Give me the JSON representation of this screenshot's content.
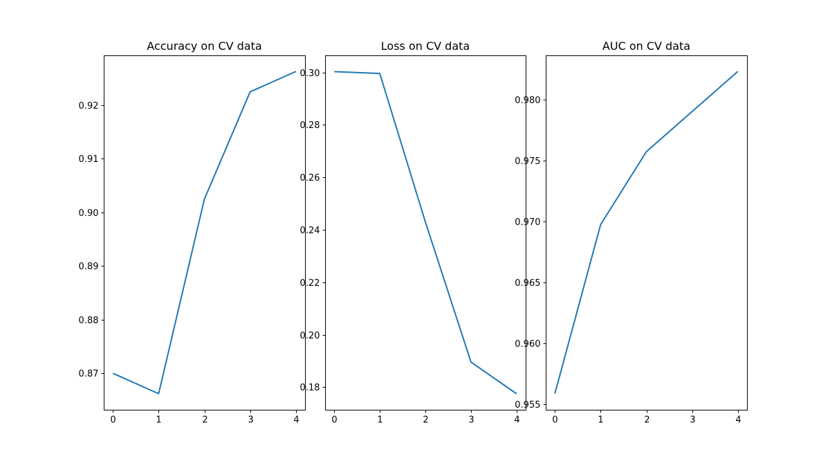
{
  "colors": {
    "series": "#1f77b4"
  },
  "chart_data": [
    {
      "type": "line",
      "title": "Accuracy on CV data",
      "x": [
        0,
        1,
        2,
        3,
        4
      ],
      "xticks": [
        0,
        1,
        2,
        3,
        4
      ],
      "xlim": [
        -0.2,
        4.2
      ],
      "series": [
        {
          "values": [
            0.87,
            0.8662,
            0.9025,
            0.9225,
            0.9263
          ]
        }
      ],
      "yticks": [
        0.87,
        0.88,
        0.89,
        0.9,
        0.91,
        0.92
      ],
      "ytick_labels": [
        "0.87",
        "0.88",
        "0.89",
        "0.90",
        "0.91",
        "0.92"
      ],
      "ylim": [
        0.8632,
        0.9293
      ],
      "grid": false,
      "legend": false
    },
    {
      "type": "line",
      "title": "Loss on CV data",
      "x": [
        0,
        1,
        2,
        3,
        4
      ],
      "xticks": [
        0,
        1,
        2,
        3,
        4
      ],
      "xlim": [
        -0.2,
        4.2
      ],
      "series": [
        {
          "values": [
            0.3003,
            0.2996,
            0.243,
            0.1896,
            0.1775
          ]
        }
      ],
      "yticks": [
        0.18,
        0.2,
        0.22,
        0.24,
        0.26,
        0.28,
        0.3
      ],
      "ytick_labels": [
        "0.18",
        "0.20",
        "0.22",
        "0.24",
        "0.26",
        "0.28",
        "0.30"
      ],
      "ylim": [
        0.1714,
        0.3065
      ],
      "grid": false,
      "legend": false
    },
    {
      "type": "line",
      "title": "AUC on CV data",
      "x": [
        0,
        1,
        2,
        3,
        4
      ],
      "xticks": [
        0,
        1,
        2,
        3,
        4
      ],
      "xlim": [
        -0.2,
        4.2
      ],
      "series": [
        {
          "values": [
            0.95585,
            0.96975,
            0.97575,
            0.97905,
            0.98235
          ]
        }
      ],
      "yticks": [
        0.955,
        0.96,
        0.965,
        0.97,
        0.975,
        0.98
      ],
      "ytick_labels": [
        "0.955",
        "0.960",
        "0.965",
        "0.970",
        "0.975",
        "0.980"
      ],
      "ylim": [
        0.95452,
        0.98367
      ],
      "grid": false,
      "legend": false
    }
  ]
}
